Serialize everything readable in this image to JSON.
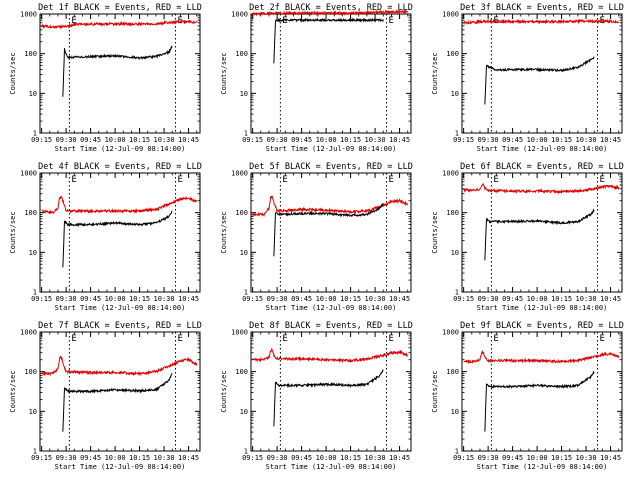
{
  "figure": {
    "background": "#ffffff",
    "colors": {
      "events": "#000000",
      "lld": "#e00000",
      "axes": "#000000"
    }
  },
  "chart_data": [
    {
      "type": "line",
      "title": "Det 1f BLACK = Events, RED = LLD",
      "xlabel": "Start Time (12-Jul-09 08:14:00)",
      "ylabel": "Counts/sec",
      "xlim": [
        "09:14",
        "10:52"
      ],
      "ylim": [
        1,
        1000
      ],
      "yscale": "log",
      "xticks": [
        "09:15",
        "09:30",
        "09:45",
        "10:00",
        "10:15",
        "10:30",
        "10:45"
      ],
      "yticks": [
        "1",
        "10",
        "100",
        "1000"
      ],
      "event_markers": {
        "start": "09:32",
        "end": "10:37",
        "start_label": "E",
        "end_label": "E"
      },
      "series": [
        {
          "name": "LLD",
          "color": "#e00000",
          "x": [
            "09:15",
            "09:20",
            "09:25",
            "09:30",
            "09:35",
            "09:45",
            "10:00",
            "10:15",
            "10:25",
            "10:35",
            "10:40",
            "10:45",
            "10:50"
          ],
          "values": [
            500,
            480,
            470,
            480,
            550,
            560,
            560,
            560,
            570,
            620,
            640,
            650,
            620
          ]
        },
        {
          "name": "Events",
          "color": "#000000",
          "x": [
            "09:28",
            "09:29",
            "09:31",
            "09:45",
            "10:00",
            "10:15",
            "10:25",
            "10:33",
            "10:35"
          ],
          "values": [
            8,
            130,
            80,
            84,
            88,
            78,
            85,
            110,
            150
          ]
        }
      ]
    },
    {
      "type": "line",
      "title": "Det 2f BLACK = Events, RED = LLD",
      "xlabel": "Start Time (12-Jul-09 08:14:00)",
      "ylabel": "Counts/sec",
      "xlim": [
        "09:14",
        "10:52"
      ],
      "ylim": [
        1,
        1000
      ],
      "yscale": "log",
      "xticks": [
        "09:15",
        "09:30",
        "09:45",
        "10:00",
        "10:15",
        "10:30",
        "10:45"
      ],
      "yticks": [
        "1",
        "10",
        "100",
        "1000"
      ],
      "event_markers": {
        "start": "09:32",
        "end": "10:37",
        "start_label": "E",
        "end_label": "E"
      },
      "series": [
        {
          "name": "LLD",
          "color": "#e00000",
          "x": [
            "09:15",
            "09:30",
            "09:45",
            "10:00",
            "10:15",
            "10:30",
            "10:45",
            "10:50"
          ],
          "values": [
            1000,
            1050,
            1050,
            1050,
            1050,
            1100,
            1150,
            1150
          ]
        },
        {
          "name": "Events",
          "color": "#000000",
          "x": [
            "09:28",
            "09:29",
            "09:45",
            "10:00",
            "10:15",
            "10:30",
            "10:35"
          ],
          "values": [
            60,
            700,
            700,
            700,
            700,
            700,
            700
          ]
        }
      ]
    },
    {
      "type": "line",
      "title": "Det 3f BLACK = Events, RED = LLD",
      "xlabel": "Start Time (12-Jul-09 08:14:00)",
      "ylabel": "Counts/sec",
      "xlim": [
        "09:14",
        "10:52"
      ],
      "ylim": [
        1,
        1000
      ],
      "yscale": "log",
      "xticks": [
        "09:15",
        "09:30",
        "09:45",
        "10:00",
        "10:15",
        "10:30",
        "10:45"
      ],
      "yticks": [
        "1",
        "10",
        "100",
        "1000"
      ],
      "event_markers": {
        "start": "09:32",
        "end": "10:37",
        "start_label": "E",
        "end_label": "E"
      },
      "series": [
        {
          "name": "LLD",
          "color": "#e00000",
          "x": [
            "09:15",
            "09:30",
            "09:45",
            "10:00",
            "10:15",
            "10:30",
            "10:45",
            "10:50"
          ],
          "values": [
            600,
            650,
            640,
            640,
            640,
            660,
            650,
            640
          ]
        },
        {
          "name": "Events",
          "color": "#000000",
          "x": [
            "09:28",
            "09:29",
            "09:35",
            "09:45",
            "10:00",
            "10:15",
            "10:25",
            "10:33",
            "10:35"
          ],
          "values": [
            5,
            50,
            38,
            40,
            40,
            38,
            45,
            70,
            80
          ]
        }
      ]
    },
    {
      "type": "line",
      "title": "Det 4f BLACK = Events, RED = LLD",
      "xlabel": "Start Time (12-Jul-09 08:14:00)",
      "ylabel": "Counts/sec",
      "xlim": [
        "09:14",
        "10:52"
      ],
      "ylim": [
        1,
        1000
      ],
      "yscale": "log",
      "xticks": [
        "09:15",
        "09:30",
        "09:45",
        "10:00",
        "10:15",
        "10:30",
        "10:45"
      ],
      "yticks": [
        "1",
        "10",
        "100",
        "1000"
      ],
      "event_markers": {
        "start": "09:32",
        "end": "10:37",
        "start_label": "E",
        "end_label": "E"
      },
      "series": [
        {
          "name": "LLD",
          "color": "#e00000",
          "x": [
            "09:15",
            "09:22",
            "09:25",
            "09:26",
            "09:27",
            "09:28",
            "09:30",
            "09:45",
            "10:00",
            "10:15",
            "10:25",
            "10:35",
            "10:40",
            "10:45",
            "10:50"
          ],
          "values": [
            110,
            100,
            130,
            230,
            260,
            200,
            110,
            110,
            110,
            110,
            120,
            180,
            220,
            230,
            190
          ]
        },
        {
          "name": "Events",
          "color": "#000000",
          "x": [
            "09:28",
            "09:29",
            "09:31",
            "09:45",
            "10:00",
            "10:15",
            "10:25",
            "10:33",
            "10:35"
          ],
          "values": [
            4,
            60,
            50,
            50,
            55,
            50,
            55,
            80,
            110
          ]
        }
      ]
    },
    {
      "type": "line",
      "title": "Det 5f BLACK = Events, RED = LLD",
      "xlabel": "Start Time (12-Jul-09 08:14:00)",
      "ylabel": "Counts/sec",
      "xlim": [
        "09:14",
        "10:52"
      ],
      "ylim": [
        1,
        1000
      ],
      "yscale": "log",
      "xticks": [
        "09:15",
        "09:30",
        "09:45",
        "10:00",
        "10:15",
        "10:30",
        "10:45"
      ],
      "yticks": [
        "1",
        "10",
        "100",
        "1000"
      ],
      "event_markers": {
        "start": "09:32",
        "end": "10:37",
        "start_label": "E",
        "end_label": "E"
      },
      "series": [
        {
          "name": "LLD",
          "color": "#e00000",
          "x": [
            "09:15",
            "09:22",
            "09:25",
            "09:26",
            "09:27",
            "09:28",
            "09:30",
            "09:45",
            "10:00",
            "10:15",
            "10:25",
            "10:35",
            "10:40",
            "10:45",
            "10:50"
          ],
          "values": [
            90,
            90,
            130,
            230,
            260,
            180,
            110,
            120,
            115,
            105,
            110,
            150,
            190,
            200,
            160
          ]
        },
        {
          "name": "Events",
          "color": "#000000",
          "x": [
            "09:28",
            "09:29",
            "09:31",
            "09:45",
            "10:00",
            "10:15",
            "10:25",
            "10:33",
            "10:35"
          ],
          "values": [
            8,
            100,
            90,
            95,
            95,
            85,
            90,
            130,
            170
          ]
        }
      ]
    },
    {
      "type": "line",
      "title": "Det 6f BLACK = Events, RED = LLD",
      "xlabel": "Start Time (12-Jul-09 08:14:00)",
      "ylabel": "Counts/sec",
      "xlim": [
        "09:14",
        "10:52"
      ],
      "ylim": [
        1,
        1000
      ],
      "yscale": "log",
      "xticks": [
        "09:15",
        "09:30",
        "09:45",
        "10:00",
        "10:15",
        "10:30",
        "10:45"
      ],
      "yticks": [
        "1",
        "10",
        "100",
        "1000"
      ],
      "event_markers": {
        "start": "09:32",
        "end": "10:37",
        "start_label": "E",
        "end_label": "E"
      },
      "series": [
        {
          "name": "LLD",
          "color": "#e00000",
          "x": [
            "09:15",
            "09:22",
            "09:25",
            "09:26",
            "09:27",
            "09:28",
            "09:30",
            "09:45",
            "10:00",
            "10:15",
            "10:25",
            "10:35",
            "10:40",
            "10:45",
            "10:50"
          ],
          "values": [
            380,
            370,
            390,
            480,
            520,
            420,
            360,
            350,
            350,
            340,
            350,
            400,
            450,
            460,
            420
          ]
        },
        {
          "name": "Events",
          "color": "#000000",
          "x": [
            "09:28",
            "09:29",
            "09:31",
            "09:45",
            "10:00",
            "10:15",
            "10:25",
            "10:33",
            "10:35"
          ],
          "values": [
            6,
            70,
            60,
            60,
            62,
            55,
            60,
            90,
            120
          ]
        }
      ]
    },
    {
      "type": "line",
      "title": "Det 7f BLACK = Events, RED = LLD",
      "xlabel": "Start Time (12-Jul-09 08:14:00)",
      "ylabel": "Counts/sec",
      "xlim": [
        "09:14",
        "10:52"
      ],
      "ylim": [
        1,
        1000
      ],
      "yscale": "log",
      "xticks": [
        "09:15",
        "09:30",
        "09:45",
        "10:00",
        "10:15",
        "10:30",
        "10:45"
      ],
      "yticks": [
        "1",
        "10",
        "100",
        "1000"
      ],
      "event_markers": {
        "start": "09:32",
        "end": "10:37",
        "start_label": "E",
        "end_label": "E"
      },
      "series": [
        {
          "name": "LLD",
          "color": "#e00000",
          "x": [
            "09:15",
            "09:22",
            "09:25",
            "09:26",
            "09:27",
            "09:28",
            "09:30",
            "09:45",
            "10:00",
            "10:15",
            "10:25",
            "10:35",
            "10:40",
            "10:45",
            "10:50"
          ],
          "values": [
            90,
            90,
            120,
            210,
            240,
            170,
            100,
            95,
            95,
            90,
            100,
            150,
            190,
            200,
            150
          ]
        },
        {
          "name": "Events",
          "color": "#000000",
          "x": [
            "09:28",
            "09:29",
            "09:31",
            "09:45",
            "10:00",
            "10:15",
            "10:25",
            "10:33",
            "10:35"
          ],
          "values": [
            3,
            40,
            32,
            32,
            35,
            33,
            35,
            60,
            90
          ]
        }
      ]
    },
    {
      "type": "line",
      "title": "Det 8f BLACK = Events, RED = LLD",
      "xlabel": "Start Time (12-Jul-09 08:14:00)",
      "ylabel": "Counts/sec",
      "xlim": [
        "09:14",
        "10:52"
      ],
      "ylim": [
        1,
        1000
      ],
      "yscale": "log",
      "xticks": [
        "09:15",
        "09:30",
        "09:45",
        "10:00",
        "10:15",
        "10:30",
        "10:45"
      ],
      "yticks": [
        "1",
        "10",
        "100",
        "1000"
      ],
      "event_markers": {
        "start": "09:32",
        "end": "10:37",
        "start_label": "E",
        "end_label": "E"
      },
      "series": [
        {
          "name": "LLD",
          "color": "#e00000",
          "x": [
            "09:15",
            "09:22",
            "09:25",
            "09:26",
            "09:27",
            "09:28",
            "09:30",
            "09:45",
            "10:00",
            "10:15",
            "10:25",
            "10:35",
            "10:40",
            "10:45",
            "10:50"
          ],
          "values": [
            200,
            200,
            230,
            330,
            360,
            260,
            210,
            210,
            200,
            190,
            210,
            260,
            300,
            310,
            260
          ]
        },
        {
          "name": "Events",
          "color": "#000000",
          "x": [
            "09:28",
            "09:29",
            "09:31",
            "09:45",
            "10:00",
            "10:15",
            "10:25",
            "10:33",
            "10:35"
          ],
          "values": [
            4,
            55,
            45,
            45,
            48,
            45,
            48,
            80,
            110
          ]
        }
      ]
    },
    {
      "type": "line",
      "title": "Det 9f BLACK = Events, RED = LLD",
      "xlabel": "Start Time (12-Jul-09 08:14:00)",
      "ylabel": "Counts/sec",
      "xlim": [
        "09:14",
        "10:52"
      ],
      "ylim": [
        1,
        1000
      ],
      "yscale": "log",
      "xticks": [
        "09:15",
        "09:30",
        "09:45",
        "10:00",
        "10:15",
        "10:30",
        "10:45"
      ],
      "yticks": [
        "1",
        "10",
        "100",
        "1000"
      ],
      "event_markers": {
        "start": "09:32",
        "end": "10:37",
        "start_label": "E",
        "end_label": "E"
      },
      "series": [
        {
          "name": "LLD",
          "color": "#e00000",
          "x": [
            "09:15",
            "09:22",
            "09:25",
            "09:26",
            "09:27",
            "09:28",
            "09:30",
            "09:45",
            "10:00",
            "10:15",
            "10:25",
            "10:35",
            "10:40",
            "10:45",
            "10:50"
          ],
          "values": [
            180,
            180,
            200,
            290,
            320,
            230,
            190,
            190,
            190,
            180,
            190,
            240,
            270,
            280,
            240
          ]
        },
        {
          "name": "Events",
          "color": "#000000",
          "x": [
            "09:28",
            "09:29",
            "09:31",
            "09:45",
            "10:00",
            "10:15",
            "10:25",
            "10:33",
            "10:35"
          ],
          "values": [
            3,
            50,
            42,
            42,
            45,
            42,
            45,
            75,
            100
          ]
        }
      ]
    }
  ]
}
